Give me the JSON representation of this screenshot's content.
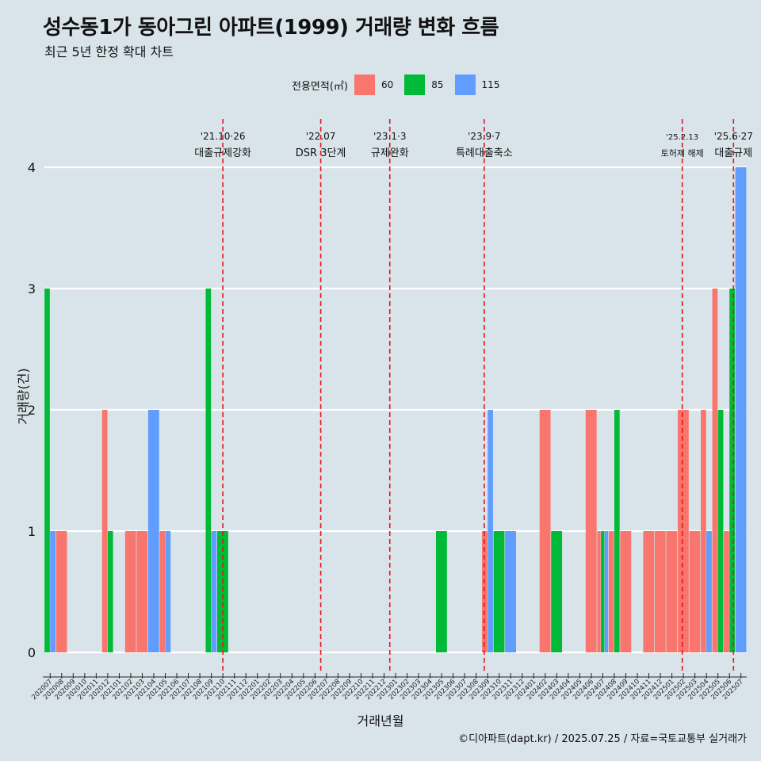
{
  "title": "성수동1가 동아그린 아파트(1999) 거래량 변화 흐름",
  "subtitle": "최근 5년 한정 확대 차트",
  "caption": "©디아파트(dapt.kr) / 2025.07.25 / 자료=국토교통부 실거래가",
  "legend": {
    "title": "전용면적(㎡)",
    "items": [
      {
        "label": "60",
        "color": "#f8766d"
      },
      {
        "label": "85",
        "color": "#00ba38"
      },
      {
        "label": "115",
        "color": "#619cff"
      }
    ]
  },
  "chart_data": {
    "type": "bar",
    "xlabel": "거래년월",
    "ylabel": "거래량(건)",
    "ylim": [
      0,
      4
    ],
    "yticks": [
      0,
      1,
      2,
      3,
      4
    ],
    "grid": "horizontal",
    "legend_position": "top",
    "categories": [
      "202007",
      "202008",
      "202009",
      "202010",
      "202011",
      "202012",
      "202101",
      "202102",
      "202103",
      "202104",
      "202105",
      "202106",
      "202107",
      "202108",
      "202109",
      "202110",
      "202111",
      "202112",
      "202201",
      "202202",
      "202203",
      "202204",
      "202205",
      "202206",
      "202207",
      "202208",
      "202209",
      "202210",
      "202211",
      "202212",
      "202301",
      "202302",
      "202303",
      "202304",
      "202305",
      "202306",
      "202307",
      "202308",
      "202309",
      "202310",
      "202311",
      "202312",
      "202401",
      "202402",
      "202403",
      "202404",
      "202405",
      "202406",
      "202407",
      "202408",
      "202409",
      "202410",
      "202411",
      "202412",
      "202501",
      "202502",
      "202503",
      "202504",
      "202505",
      "202506",
      "202507"
    ],
    "series": [
      {
        "name": "60",
        "color": "#f8766d",
        "values": [
          0,
          1,
          0,
          0,
          0,
          2,
          0,
          1,
          1,
          0,
          1,
          0,
          0,
          0,
          0,
          0,
          0,
          0,
          0,
          0,
          0,
          0,
          0,
          0,
          0,
          0,
          0,
          0,
          0,
          0,
          0,
          0,
          0,
          0,
          0,
          0,
          0,
          0,
          1,
          0,
          0,
          0,
          0,
          2,
          0,
          0,
          0,
          2,
          1,
          1,
          1,
          0,
          1,
          1,
          1,
          2,
          1,
          2,
          3,
          1,
          0
        ]
      },
      {
        "name": "85",
        "color": "#00ba38",
        "values": [
          3,
          0,
          0,
          0,
          0,
          1,
          0,
          0,
          0,
          0,
          0,
          0,
          0,
          0,
          3,
          1,
          0,
          0,
          0,
          0,
          0,
          0,
          0,
          0,
          0,
          0,
          0,
          0,
          0,
          0,
          0,
          0,
          0,
          0,
          1,
          0,
          0,
          0,
          0,
          1,
          0,
          0,
          0,
          0,
          1,
          0,
          0,
          0,
          1,
          2,
          0,
          0,
          0,
          0,
          0,
          0,
          0,
          0,
          2,
          3,
          0
        ]
      },
      {
        "name": "115",
        "color": "#619cff",
        "values": [
          1,
          0,
          0,
          0,
          0,
          0,
          0,
          0,
          0,
          2,
          1,
          0,
          0,
          0,
          1,
          0,
          0,
          0,
          0,
          0,
          0,
          0,
          0,
          0,
          0,
          0,
          0,
          0,
          0,
          0,
          0,
          0,
          0,
          0,
          0,
          0,
          0,
          0,
          2,
          0,
          1,
          0,
          0,
          0,
          0,
          0,
          0,
          0,
          1,
          0,
          0,
          0,
          0,
          0,
          0,
          0,
          0,
          1,
          0,
          0,
          4
        ]
      }
    ],
    "events": [
      {
        "date": "'21.10·26",
        "label": "대출규제강화",
        "at": "202110",
        "offset": 0.5
      },
      {
        "date": "'22.07",
        "label": "DSR 3단계",
        "at": "202207",
        "offset": 0
      },
      {
        "date": "'23.1·3",
        "label": "규제완화",
        "at": "202301",
        "offset": 0
      },
      {
        "date": "'23.9·7",
        "label": "특례대출축소",
        "at": "202309",
        "offset": 0.2
      },
      {
        "date": "'25.2.13",
        "label": "토허제 해제",
        "at": "202502",
        "offset": 0.4,
        "small": true
      },
      {
        "date": "'25.6·27",
        "label": "대출규제",
        "at": "202506",
        "offset": 0.85
      }
    ]
  }
}
